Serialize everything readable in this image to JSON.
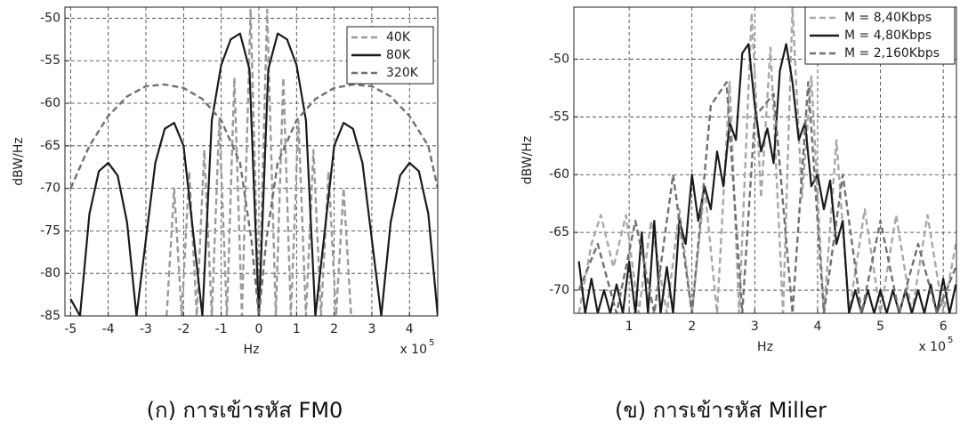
{
  "chart_data": [
    {
      "type": "line",
      "caption": "(ก) การเข้ารหัส FM0",
      "x_label": "Hz",
      "y_label": "dBW/Hz",
      "x_multiplier": "x 10",
      "x_exponent": "5",
      "xlim": [
        -5.15,
        4.75
      ],
      "ylim": [
        -85,
        -48.7
      ],
      "xticks": [
        -5,
        -4,
        -3,
        -2,
        -1,
        0,
        1,
        2,
        3,
        4
      ],
      "yticks": [
        -85,
        -80,
        -75,
        -70,
        -65,
        -60,
        -55,
        -50
      ],
      "grid": true,
      "legend": "upper right",
      "series": [
        {
          "name": "40K",
          "color": "#9a9a9a",
          "dashed": true,
          "x": [
            -2.45,
            -2.25,
            -2.05,
            -1.85,
            -1.65,
            -1.45,
            -1.25,
            -1.05,
            -0.85,
            -0.65,
            -0.45,
            -0.22,
            0,
            0.22,
            0.45,
            0.65,
            0.85,
            1.05,
            1.25,
            1.45,
            1.65,
            1.85,
            2.05,
            2.25,
            2.45
          ],
          "values": [
            -85,
            -70,
            -85,
            -68,
            -85,
            -65.5,
            -85,
            -62,
            -85,
            -57,
            -85,
            -49,
            -85,
            -49,
            -85,
            -57,
            -85,
            -62,
            -85,
            -65.5,
            -85,
            -68,
            -85,
            -70,
            -85
          ]
        },
        {
          "name": "80K",
          "color": "#1a1a1a",
          "dashed": false,
          "x": [
            -5,
            -4.75,
            -4.5,
            -4.25,
            -4,
            -3.75,
            -3.5,
            -3.25,
            -3,
            -2.75,
            -2.5,
            -2.25,
            -2,
            -1.75,
            -1.5,
            -1.25,
            -1,
            -0.75,
            -0.5,
            -0.25,
            0,
            0.25,
            0.5,
            0.75,
            1,
            1.25,
            1.5,
            1.75,
            2,
            2.25,
            2.5,
            2.75,
            3,
            3.25,
            3.5,
            3.75,
            4,
            4.25,
            4.5,
            4.75
          ],
          "values": [
            -83,
            -85,
            -73,
            -68,
            -67,
            -68.5,
            -74,
            -85,
            -76,
            -67,
            -63,
            -62.3,
            -65,
            -75,
            -85,
            -62,
            -55.5,
            -52.5,
            -51.8,
            -56,
            -85,
            -56,
            -51.8,
            -52.5,
            -55.5,
            -62,
            -85,
            -75,
            -65,
            -62.3,
            -63,
            -67,
            -76,
            -85,
            -74,
            -68.5,
            -67,
            -68,
            -73,
            -85
          ]
        },
        {
          "name": "320K",
          "color": "#707070",
          "dashed": true,
          "x": [
            -5,
            -4.5,
            -4,
            -3.5,
            -3,
            -2.5,
            -2,
            -1.5,
            -1,
            -0.5,
            -0.2,
            0,
            0.2,
            0.5,
            1,
            1.5,
            2,
            2.5,
            3,
            3.5,
            4,
            4.5,
            4.75
          ],
          "values": [
            -70,
            -65,
            -61.5,
            -59.2,
            -58,
            -57.8,
            -58.2,
            -59.5,
            -62,
            -67,
            -76,
            -85,
            -76,
            -67,
            -62,
            -59.5,
            -58.2,
            -57.8,
            -58,
            -59.2,
            -61.5,
            -65,
            -70
          ]
        }
      ]
    },
    {
      "type": "line",
      "caption": "(ข) การเข้ารหัส Miller",
      "x_label": "Hz",
      "y_label": "dBW/Hz",
      "x_multiplier": "x 10",
      "x_exponent": "5",
      "xlim": [
        0.12,
        6.21
      ],
      "ylim": [
        -72,
        -45.5
      ],
      "xticks": [
        1,
        2,
        3,
        4,
        5,
        6
      ],
      "yticks": [
        -70,
        -65,
        -60,
        -55,
        -50
      ],
      "grid": true,
      "legend": "upper right",
      "series": [
        {
          "name": "M = 8,40Kbps",
          "color": "#a8a8a8",
          "dashed": true,
          "x": [
            0.2,
            0.4,
            0.55,
            0.75,
            0.95,
            1.15,
            1.35,
            1.6,
            1.8,
            2.0,
            2.2,
            2.4,
            2.6,
            2.75,
            2.95,
            3.1,
            3.25,
            3.45,
            3.6,
            3.75,
            3.9,
            4.1,
            4.3,
            4.5,
            4.75,
            5.0,
            5.25,
            5.5,
            5.75,
            6.0,
            6.2
          ],
          "values": [
            -72,
            -66,
            -63.5,
            -68,
            -63.5,
            -72,
            -64,
            -72,
            -63,
            -72,
            -61,
            -72,
            -52,
            -72,
            -46,
            -62,
            -49,
            -72,
            -45.5,
            -62,
            -51.5,
            -72,
            -57,
            -72,
            -63,
            -72,
            -63.5,
            -72,
            -63.5,
            -72,
            -66
          ]
        },
        {
          "name": "M = 4,80Kbps",
          "color": "#1a1a1a",
          "dashed": false,
          "x": [
            0.2,
            0.3,
            0.4,
            0.5,
            0.6,
            0.7,
            0.8,
            0.9,
            1.0,
            1.1,
            1.2,
            1.3,
            1.4,
            1.5,
            1.6,
            1.7,
            1.8,
            1.9,
            2.0,
            2.1,
            2.2,
            2.3,
            2.4,
            2.5,
            2.6,
            2.7,
            2.8,
            2.9,
            3.0,
            3.1,
            3.2,
            3.3,
            3.4,
            3.5,
            3.6,
            3.7,
            3.8,
            3.9,
            4.0,
            4.1,
            4.2,
            4.3,
            4.4,
            4.5,
            4.6,
            4.7,
            4.8,
            4.9,
            5.0,
            5.1,
            5.2,
            5.3,
            5.4,
            5.5,
            5.6,
            5.7,
            5.8,
            5.9,
            6.0,
            6.1,
            6.2
          ],
          "values": [
            -67.5,
            -72,
            -69,
            -72,
            -70,
            -72,
            -69.5,
            -72,
            -67.5,
            -72,
            -65,
            -72,
            -64,
            -72,
            -68,
            -72,
            -64,
            -66,
            -60,
            -64,
            -61,
            -63,
            -58,
            -61,
            -55.5,
            -57,
            -49.5,
            -48.7,
            -54,
            -58,
            -56,
            -59,
            -51,
            -48.7,
            -52,
            -57,
            -55.5,
            -61,
            -60,
            -63,
            -60.5,
            -66,
            -64,
            -72,
            -70,
            -72,
            -70,
            -72,
            -70,
            -72,
            -70,
            -72,
            -70,
            -72,
            -70,
            -72,
            -69.5,
            -72,
            -69,
            -72,
            -69.5
          ]
        },
        {
          "name": "M = 2,160Kbps",
          "color": "#707070",
          "dashed": true,
          "x": [
            0.2,
            0.5,
            0.8,
            1.1,
            1.4,
            1.7,
            2.0,
            2.3,
            2.55,
            2.8,
            3.0,
            3.3,
            3.6,
            3.85,
            4.1,
            4.4,
            4.7,
            5.0,
            5.3,
            5.6,
            5.9,
            6.2
          ],
          "values": [
            -70,
            -66,
            -72,
            -64,
            -72,
            -60,
            -72,
            -54,
            -52,
            -72,
            -55,
            -53,
            -72,
            -52,
            -72,
            -60,
            -72,
            -64,
            -72,
            -66,
            -72,
            -68
          ]
        }
      ]
    }
  ]
}
